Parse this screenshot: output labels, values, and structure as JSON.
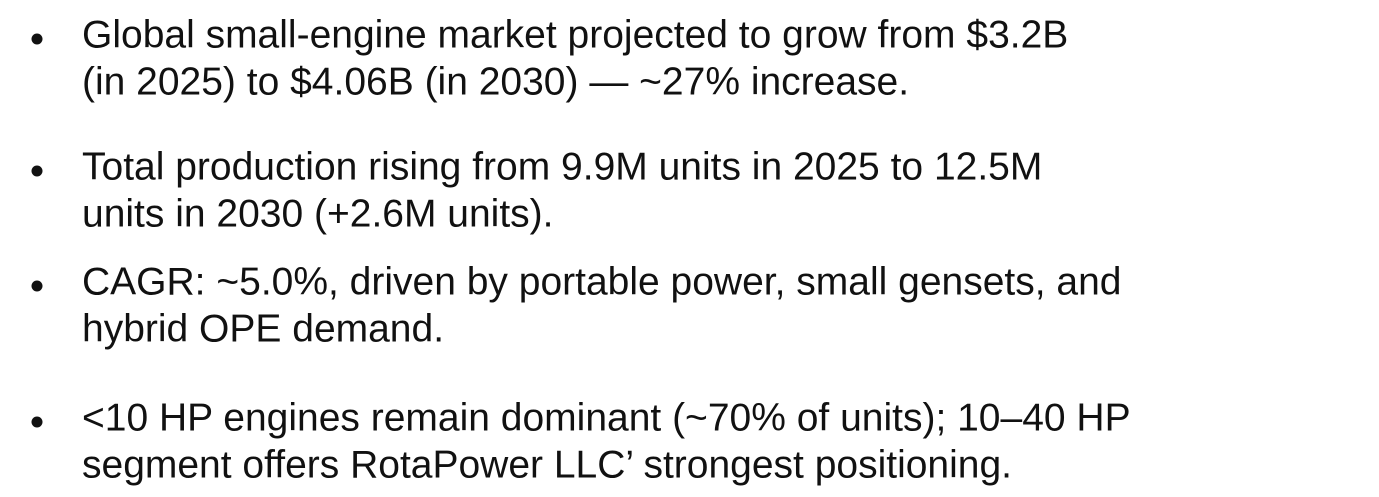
{
  "bullets": [
    {
      "lines": [
        "Global small-engine market projected to grow from $3.2B",
        "(in 2025) to $4.06B (in 2030) — ~27% increase."
      ]
    },
    {
      "lines": [
        "Total production rising from 9.9M units in 2025 to 12.5M",
        "units in 2030 (+2.6M units)."
      ]
    },
    {
      "lines": [
        "CAGR: ~5.0%, driven by portable power, small gensets, and",
        "hybrid OPE demand."
      ]
    },
    {
      "lines": [
        "<10 HP engines remain dominant (~70% of units); 10–40 HP",
        "segment offers RotaPower LLC’ strongest positioning."
      ]
    }
  ]
}
